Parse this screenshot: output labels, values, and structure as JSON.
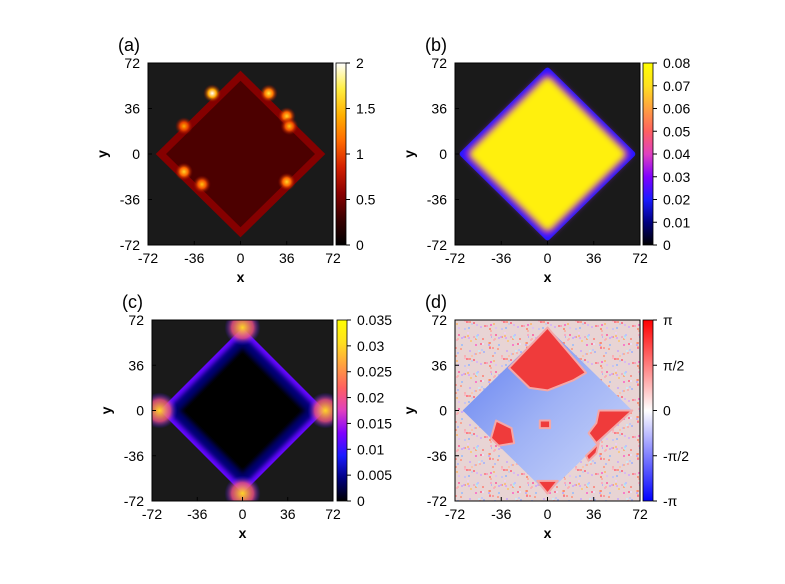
{
  "chart_data": [
    {
      "type": "heatmap",
      "panel_label": "(a)",
      "xlabel": "x",
      "ylabel": "y",
      "x_ticks": [
        "-72",
        "-36",
        "0",
        "36",
        "72"
      ],
      "y_ticks": [
        "-72",
        "-36",
        "0",
        "36",
        "72"
      ],
      "xlim": [
        -72,
        72
      ],
      "ylim": [
        -72,
        72
      ],
      "colorbar": {
        "min": 0,
        "max": 2,
        "ticks": [
          "0",
          "0.5",
          "1",
          "1.5",
          "2"
        ],
        "colors": [
          "#000000",
          "#3a0000",
          "#8b0000",
          "#d42000",
          "#ff6a00",
          "#ffb000",
          "#ffee40",
          "#ffffff"
        ]
      },
      "background_color": "#1a1a1a",
      "region": {
        "shape": "diamond",
        "center": [
          0,
          0
        ],
        "half_diagonal": 66,
        "interior_value": 0.35,
        "edge_value": 0.55
      },
      "hotspots": [
        {
          "x": -22,
          "y": 48,
          "value": 2.0
        },
        {
          "x": 22,
          "y": 48,
          "value": 1.7
        },
        {
          "x": 36,
          "y": 30,
          "value": 1.6
        },
        {
          "x": -44,
          "y": 22,
          "value": 1.4
        },
        {
          "x": -44,
          "y": -14,
          "value": 1.6
        },
        {
          "x": -30,
          "y": -24,
          "value": 1.5
        },
        {
          "x": 36,
          "y": -22,
          "value": 1.6
        },
        {
          "x": 38,
          "y": 22,
          "value": 1.5
        }
      ]
    },
    {
      "type": "heatmap",
      "panel_label": "(b)",
      "xlabel": "x",
      "ylabel": "y",
      "x_ticks": [
        "-72",
        "-36",
        "0",
        "36",
        "72"
      ],
      "y_ticks": [
        "-72",
        "-36",
        "0",
        "36",
        "72"
      ],
      "xlim": [
        -72,
        72
      ],
      "ylim": [
        -72,
        72
      ],
      "colorbar": {
        "min": 0,
        "max": 0.08,
        "ticks": [
          "0",
          "0.01",
          "0.02",
          "0.03",
          "0.04",
          "0.05",
          "0.06",
          "0.07",
          "0.08"
        ],
        "colors": [
          "#000000",
          "#000080",
          "#1a1aff",
          "#8000ff",
          "#e040c0",
          "#ff6060",
          "#ffa040",
          "#ffe020",
          "#ffff00"
        ]
      },
      "background_color": "#1a1a1a",
      "region": {
        "shape": "diamond",
        "center": [
          0,
          0
        ],
        "half_diagonal": 66,
        "interior_value": 0.075,
        "edge_value": 0.03
      }
    },
    {
      "type": "heatmap",
      "panel_label": "(c)",
      "xlabel": "x",
      "ylabel": "y",
      "x_ticks": [
        "-72",
        "-36",
        "0",
        "36",
        "72"
      ],
      "y_ticks": [
        "-72",
        "-36",
        "0",
        "36",
        "72"
      ],
      "xlim": [
        -72,
        72
      ],
      "ylim": [
        -72,
        72
      ],
      "colorbar": {
        "min": 0,
        "max": 0.035,
        "ticks": [
          "0",
          "0.005",
          "0.01",
          "0.015",
          "0.02",
          "0.025",
          "0.03",
          "0.035"
        ],
        "colors": [
          "#000000",
          "#000080",
          "#1a1aff",
          "#8000ff",
          "#e040c0",
          "#ff6060",
          "#ffa040",
          "#ffe020",
          "#ffff00"
        ]
      },
      "background_color": "#1a1a1a",
      "region": {
        "shape": "diamond",
        "center": [
          0,
          0
        ],
        "half_diagonal": 66,
        "interior_value": 0.0,
        "edge_value": 0.012,
        "corner_value": 0.03
      }
    },
    {
      "type": "heatmap",
      "panel_label": "(d)",
      "xlabel": "x",
      "ylabel": "y",
      "x_ticks": [
        "-72",
        "-36",
        "0",
        "36",
        "72"
      ],
      "y_ticks": [
        "-72",
        "-36",
        "0",
        "36",
        "72"
      ],
      "xlim": [
        -72,
        72
      ],
      "ylim": [
        -72,
        72
      ],
      "colorbar": {
        "min": "-π",
        "max": "π",
        "ticks": [
          "-π",
          "-π/2",
          "0",
          "π/2",
          "π"
        ],
        "colors": [
          "#0000ff",
          "#ffffff",
          "#ff0000"
        ]
      },
      "background_color": "#e8d4d4",
      "region": {
        "shape": "diamond",
        "center": [
          0,
          0
        ],
        "half_diagonal": 66
      },
      "phase_regions": [
        {
          "description_value": "π",
          "polygon": [
            [
              -30,
              34
            ],
            [
              0,
              66
            ],
            [
              30,
              30
            ],
            [
              20,
              24
            ],
            [
              0,
              16
            ],
            [
              -14,
              18
            ]
          ]
        },
        {
          "description_value": "π",
          "polygon": [
            [
              40,
              0
            ],
            [
              66,
              0
            ],
            [
              38,
              -26
            ],
            [
              32,
              -18
            ],
            [
              38,
              -10
            ]
          ]
        },
        {
          "description_value": "π",
          "polygon": [
            [
              -40,
              -8
            ],
            [
              -28,
              -14
            ],
            [
              -26,
              -26
            ],
            [
              -38,
              -28
            ],
            [
              -44,
              -22
            ]
          ]
        },
        {
          "description_value": "π",
          "polygon": [
            [
              30,
              -36
            ],
            [
              40,
              -26
            ],
            [
              38,
              -34
            ],
            [
              32,
              -40
            ]
          ]
        },
        {
          "description_value": "π",
          "polygon": [
            [
              -8,
              -56
            ],
            [
              8,
              -56
            ],
            [
              0,
              -66
            ]
          ]
        },
        {
          "description_value": "π",
          "polygon": [
            [
              -6,
              -8
            ],
            [
              2,
              -8
            ],
            [
              2,
              -14
            ],
            [
              -6,
              -14
            ]
          ]
        }
      ]
    }
  ]
}
